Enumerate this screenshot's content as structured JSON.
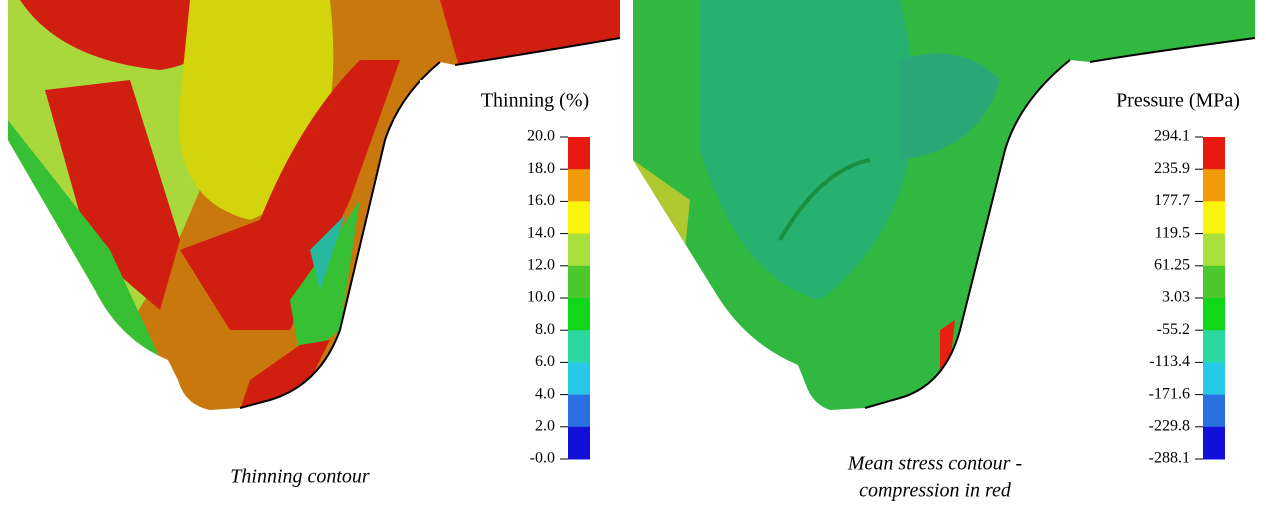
{
  "left": {
    "legend": {
      "title": "Thinning (%)",
      "ticks": [
        "20.0",
        "18.0",
        "16.0",
        "14.0",
        "12.0",
        "10.0",
        "8.0",
        "6.0",
        "4.0",
        "2.0",
        "-0.0"
      ]
    },
    "caption": "Thinning contour"
  },
  "right": {
    "legend": {
      "title": "Pressure (MPa)",
      "ticks": [
        "294.1",
        "235.9",
        "177.7",
        "119.5",
        "61.25",
        "3.03",
        "-55.2",
        "-113.4",
        "-171.6",
        "-229.8",
        "-288.1"
      ]
    },
    "caption": [
      "Mean stress contour -",
      "compression in red"
    ]
  }
}
